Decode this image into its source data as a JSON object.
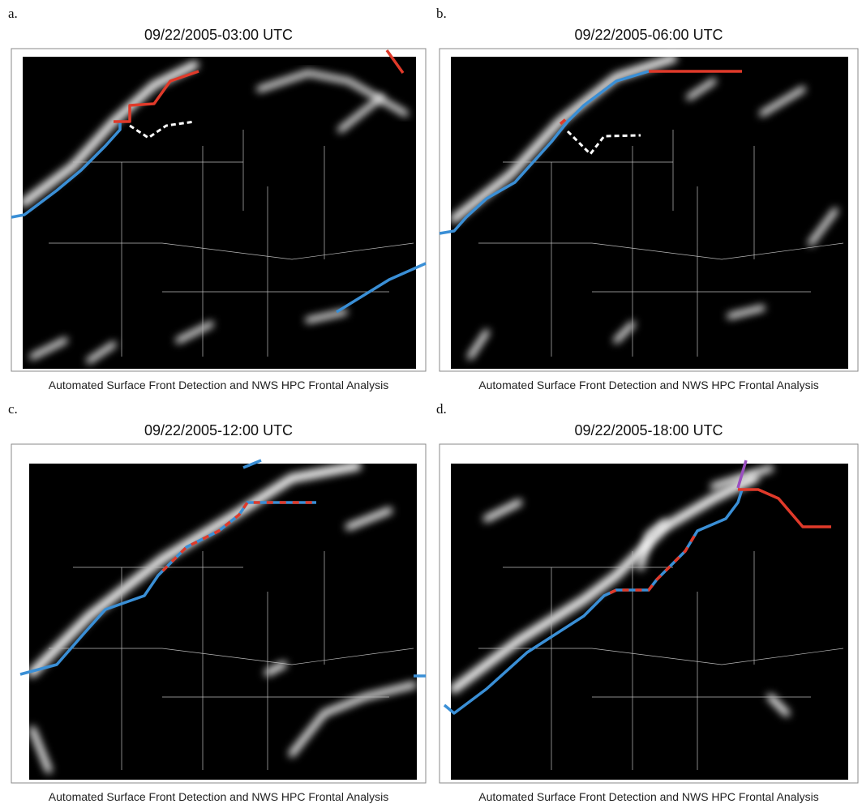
{
  "panels": [
    {
      "letter": "a.",
      "title": "09/22/2005-03:00 UTC",
      "caption": "Automated Surface Front Detection and NWS HPC Frontal Analysis"
    },
    {
      "letter": "b.",
      "title": "09/22/2005-06:00 UTC",
      "caption": "Automated Surface Front Detection and NWS HPC Frontal Analysis"
    },
    {
      "letter": "c.",
      "title": "09/22/2005-12:00 UTC",
      "caption": "Automated Surface Front Detection and NWS HPC Frontal Analysis"
    },
    {
      "letter": "d.",
      "title": "09/22/2005-18:00 UTC",
      "caption": "Automated Surface Front Detection and NWS HPC Frontal Analysis"
    }
  ]
}
